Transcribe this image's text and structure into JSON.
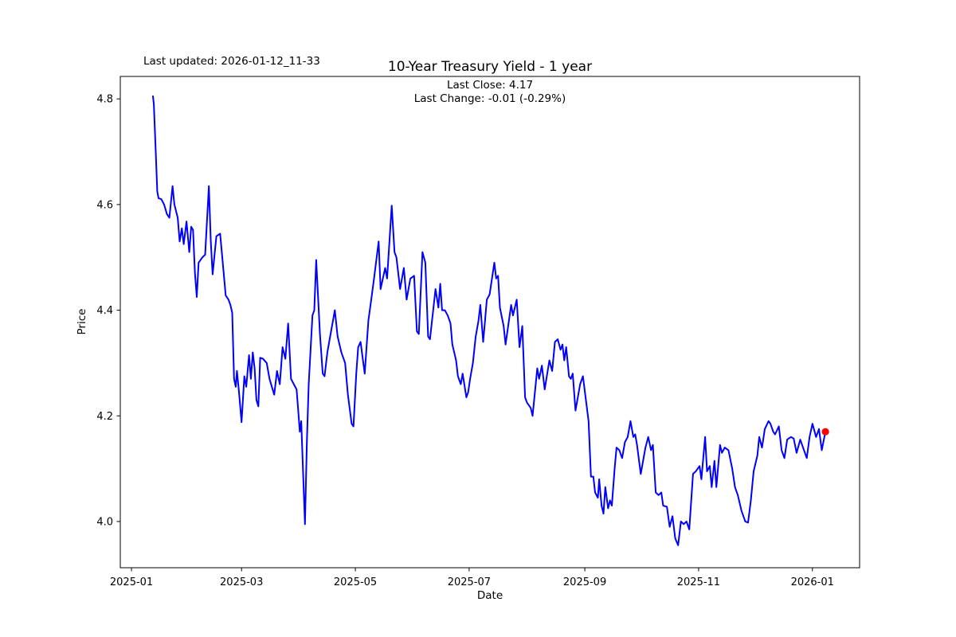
{
  "figure": {
    "last_updated": "Last updated: 2026-01-12_11-33"
  },
  "chart_data": {
    "type": "line",
    "title": "10-Year Treasury Yield - 1 year",
    "subtitle_line1": "Last Close: 4.17",
    "subtitle_line2": "Last Change: -0.01 (-0.29%)",
    "xlabel": "Date",
    "ylabel": "Price",
    "grid": false,
    "legend": "none",
    "line_color": "#0000ff",
    "marker_color": "#ff0000",
    "axis_color": "#000000",
    "x_axis": {
      "unit": "days since 2025-01-01",
      "tick_days": [
        0,
        59,
        120,
        181,
        243,
        304,
        365
      ],
      "tick_labels": [
        "2025-01",
        "2025-03",
        "2025-05",
        "2025-07",
        "2025-09",
        "2025-11",
        "2026-01"
      ],
      "xlim_days": [
        -6.0,
        390.3
      ]
    },
    "y_axis": {
      "ticks": [
        4.0,
        4.2,
        4.4,
        4.6,
        4.8
      ],
      "tick_labels": [
        "4.0",
        "4.2",
        "4.4",
        "4.6",
        "4.8"
      ],
      "ylim": [
        3.9125,
        4.8425
      ]
    },
    "last_point": {
      "day": 372,
      "value": 4.17
    },
    "series": [
      {
        "name": "10-Year Treasury Yield",
        "points": [
          [
            11.5,
            4.805
          ],
          [
            12,
            4.79
          ],
          [
            13,
            4.7
          ],
          [
            13.8,
            4.625
          ],
          [
            14.5,
            4.612
          ],
          [
            16,
            4.61
          ],
          [
            17.5,
            4.6
          ],
          [
            19,
            4.582
          ],
          [
            20.3,
            4.575
          ],
          [
            22,
            4.635
          ],
          [
            23,
            4.6
          ],
          [
            24.8,
            4.575
          ],
          [
            25.8,
            4.53
          ],
          [
            27,
            4.555
          ],
          [
            28,
            4.525
          ],
          [
            29.5,
            4.568
          ],
          [
            31,
            4.51
          ],
          [
            32,
            4.558
          ],
          [
            33,
            4.552
          ],
          [
            34,
            4.47
          ],
          [
            35,
            4.425
          ],
          [
            36,
            4.49
          ],
          [
            38,
            4.5
          ],
          [
            39.5,
            4.505
          ],
          [
            41.5,
            4.635
          ],
          [
            42.5,
            4.53
          ],
          [
            43.5,
            4.468
          ],
          [
            45.5,
            4.54
          ],
          [
            47.5,
            4.545
          ],
          [
            48.8,
            4.495
          ],
          [
            50.5,
            4.428
          ],
          [
            52,
            4.42
          ],
          [
            53,
            4.41
          ],
          [
            54,
            4.395
          ],
          [
            55,
            4.27
          ],
          [
            55.9,
            4.255
          ],
          [
            56.5,
            4.285
          ],
          [
            57.5,
            4.25
          ],
          [
            59,
            4.188
          ],
          [
            60.5,
            4.275
          ],
          [
            61.5,
            4.255
          ],
          [
            63,
            4.315
          ],
          [
            64,
            4.27
          ],
          [
            65,
            4.32
          ],
          [
            66,
            4.29
          ],
          [
            67,
            4.23
          ],
          [
            68,
            4.218
          ],
          [
            69,
            4.31
          ],
          [
            70.5,
            4.308
          ],
          [
            72.5,
            4.3
          ],
          [
            74,
            4.27
          ],
          [
            76.5,
            4.24
          ],
          [
            78,
            4.285
          ],
          [
            79.5,
            4.26
          ],
          [
            81,
            4.33
          ],
          [
            82.5,
            4.308
          ],
          [
            84,
            4.375
          ],
          [
            85.5,
            4.27
          ],
          [
            87,
            4.26
          ],
          [
            88.5,
            4.25
          ],
          [
            89.5,
            4.205
          ],
          [
            90.2,
            4.17
          ],
          [
            91,
            4.19
          ],
          [
            93,
            3.995
          ],
          [
            94,
            4.15
          ],
          [
            95,
            4.26
          ],
          [
            97,
            4.39
          ],
          [
            98,
            4.4
          ],
          [
            99,
            4.495
          ],
          [
            101,
            4.355
          ],
          [
            102.5,
            4.28
          ],
          [
            103.5,
            4.275
          ],
          [
            105,
            4.32
          ],
          [
            106.5,
            4.35
          ],
          [
            109,
            4.4
          ],
          [
            110.5,
            4.35
          ],
          [
            112.5,
            4.32
          ],
          [
            114.5,
            4.3
          ],
          [
            116,
            4.24
          ],
          [
            118,
            4.185
          ],
          [
            119,
            4.18
          ],
          [
            120.5,
            4.28
          ],
          [
            121.5,
            4.33
          ],
          [
            122.8,
            4.34
          ],
          [
            125,
            4.28
          ],
          [
            127,
            4.38
          ],
          [
            128.5,
            4.42
          ],
          [
            130,
            4.46
          ],
          [
            132.5,
            4.53
          ],
          [
            133.5,
            4.44
          ],
          [
            136,
            4.48
          ],
          [
            137,
            4.46
          ],
          [
            139.5,
            4.598
          ],
          [
            141,
            4.51
          ],
          [
            142,
            4.5
          ],
          [
            144,
            4.44
          ],
          [
            146,
            4.48
          ],
          [
            147.5,
            4.42
          ],
          [
            149.5,
            4.46
          ],
          [
            151.5,
            4.465
          ],
          [
            153,
            4.36
          ],
          [
            154,
            4.355
          ],
          [
            156,
            4.51
          ],
          [
            157.5,
            4.49
          ],
          [
            159,
            4.35
          ],
          [
            160,
            4.345
          ],
          [
            163,
            4.44
          ],
          [
            164.5,
            4.405
          ],
          [
            165.5,
            4.45
          ],
          [
            166.5,
            4.4
          ],
          [
            168,
            4.4
          ],
          [
            169.5,
            4.39
          ],
          [
            171,
            4.375
          ],
          [
            172,
            4.335
          ],
          [
            174,
            4.305
          ],
          [
            175,
            4.275
          ],
          [
            176.5,
            4.26
          ],
          [
            177.5,
            4.28
          ],
          [
            179.5,
            4.235
          ],
          [
            180.5,
            4.245
          ],
          [
            181.5,
            4.27
          ],
          [
            183,
            4.3
          ],
          [
            184.5,
            4.35
          ],
          [
            186,
            4.38
          ],
          [
            187,
            4.41
          ],
          [
            188.5,
            4.34
          ],
          [
            190.5,
            4.42
          ],
          [
            192,
            4.43
          ],
          [
            194.5,
            4.49
          ],
          [
            195.5,
            4.46
          ],
          [
            196.5,
            4.465
          ],
          [
            197.5,
            4.405
          ],
          [
            199.5,
            4.37
          ],
          [
            200.5,
            4.335
          ],
          [
            203.5,
            4.41
          ],
          [
            204.5,
            4.39
          ],
          [
            206.5,
            4.42
          ],
          [
            208,
            4.33
          ],
          [
            209.5,
            4.37
          ],
          [
            211,
            4.235
          ],
          [
            212,
            4.225
          ],
          [
            214,
            4.215
          ],
          [
            215,
            4.2
          ],
          [
            217.5,
            4.29
          ],
          [
            218.5,
            4.27
          ],
          [
            220,
            4.295
          ],
          [
            221.5,
            4.25
          ],
          [
            224,
            4.305
          ],
          [
            225.5,
            4.285
          ],
          [
            227,
            4.34
          ],
          [
            228.5,
            4.345
          ],
          [
            230,
            4.325
          ],
          [
            231,
            4.335
          ],
          [
            232,
            4.305
          ],
          [
            233,
            4.33
          ],
          [
            234.5,
            4.275
          ],
          [
            235.5,
            4.27
          ],
          [
            236.5,
            4.28
          ],
          [
            238,
            4.21
          ],
          [
            240.5,
            4.26
          ],
          [
            242,
            4.275
          ],
          [
            245,
            4.19
          ],
          [
            246.3,
            4.085
          ],
          [
            247.6,
            4.085
          ],
          [
            248.5,
            4.055
          ],
          [
            250,
            4.045
          ],
          [
            250.7,
            4.08
          ],
          [
            252,
            4.03
          ],
          [
            253,
            4.015
          ],
          [
            254,
            4.065
          ],
          [
            255.5,
            4.025
          ],
          [
            256.5,
            4.04
          ],
          [
            257.5,
            4.03
          ],
          [
            259,
            4.1
          ],
          [
            260,
            4.14
          ],
          [
            261.5,
            4.135
          ],
          [
            263,
            4.12
          ],
          [
            264.5,
            4.15
          ],
          [
            266,
            4.16
          ],
          [
            267.5,
            4.19
          ],
          [
            269,
            4.16
          ],
          [
            270,
            4.165
          ],
          [
            271,
            4.145
          ],
          [
            273,
            4.09
          ],
          [
            275.5,
            4.14
          ],
          [
            277,
            4.16
          ],
          [
            278.5,
            4.135
          ],
          [
            279.5,
            4.145
          ],
          [
            281,
            4.055
          ],
          [
            282.5,
            4.05
          ],
          [
            284,
            4.055
          ],
          [
            285,
            4.03
          ],
          [
            287,
            4.028
          ],
          [
            288.5,
            3.99
          ],
          [
            290,
            4.01
          ],
          [
            291.5,
            3.968
          ],
          [
            293,
            3.955
          ],
          [
            294.5,
            4.0
          ],
          [
            296,
            3.995
          ],
          [
            297.5,
            4.0
          ],
          [
            299,
            3.985
          ],
          [
            301,
            4.09
          ],
          [
            302.5,
            4.095
          ],
          [
            304.5,
            4.105
          ],
          [
            305.5,
            4.08
          ],
          [
            307.5,
            4.16
          ],
          [
            308.5,
            4.095
          ],
          [
            310,
            4.105
          ],
          [
            311,
            4.065
          ],
          [
            312.5,
            4.115
          ],
          [
            313.5,
            4.065
          ],
          [
            315.5,
            4.145
          ],
          [
            316.5,
            4.13
          ],
          [
            318,
            4.14
          ],
          [
            320,
            4.135
          ],
          [
            322,
            4.1
          ],
          [
            323.5,
            4.065
          ],
          [
            325,
            4.05
          ],
          [
            327,
            4.02
          ],
          [
            329,
            4.0
          ],
          [
            330.5,
            3.998
          ],
          [
            332,
            4.04
          ],
          [
            333.5,
            4.095
          ],
          [
            335.5,
            4.125
          ],
          [
            336.5,
            4.16
          ],
          [
            338,
            4.14
          ],
          [
            339.5,
            4.175
          ],
          [
            341.5,
            4.19
          ],
          [
            342.5,
            4.185
          ],
          [
            344,
            4.17
          ],
          [
            345,
            4.165
          ],
          [
            347,
            4.18
          ],
          [
            348.5,
            4.135
          ],
          [
            350,
            4.12
          ],
          [
            351.5,
            4.155
          ],
          [
            353.5,
            4.16
          ],
          [
            355,
            4.157
          ],
          [
            356.5,
            4.13
          ],
          [
            358.5,
            4.155
          ],
          [
            360,
            4.14
          ],
          [
            362,
            4.12
          ],
          [
            363.5,
            4.16
          ],
          [
            365,
            4.185
          ],
          [
            367,
            4.16
          ],
          [
            368.5,
            4.175
          ],
          [
            370,
            4.135
          ],
          [
            372,
            4.17
          ]
        ]
      }
    ]
  }
}
